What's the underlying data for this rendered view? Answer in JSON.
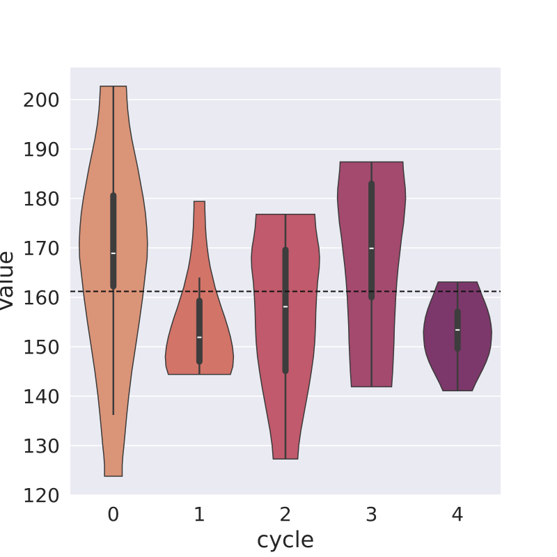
{
  "chart_data": {
    "type": "violin",
    "xlabel": "cycle",
    "ylabel": "Value",
    "categories": [
      "0",
      "1",
      "2",
      "3",
      "4"
    ],
    "ylim": [
      120,
      206.5
    ],
    "yticks": [
      120,
      130,
      140,
      150,
      160,
      170,
      180,
      190,
      200
    ],
    "reference_line": {
      "y": 161.2,
      "style": "dashed",
      "color": "#111111"
    },
    "grid": true,
    "legend": "none",
    "background": "#eaeaf2",
    "violins": [
      {
        "category": "0",
        "color": "#da9478",
        "min": 123.8,
        "max": 202.7,
        "q1": 162.2,
        "median": 168.9,
        "q3": 180.6,
        "whisker_low": 136.2,
        "whisker_high": 202.7,
        "density": [
          [
            123.8,
            0.26
          ],
          [
            126,
            0.26
          ],
          [
            128,
            0.28
          ],
          [
            130,
            0.31
          ],
          [
            133,
            0.35
          ],
          [
            136,
            0.39
          ],
          [
            140,
            0.45
          ],
          [
            145,
            0.54
          ],
          [
            150,
            0.65
          ],
          [
            155,
            0.76
          ],
          [
            160,
            0.86
          ],
          [
            165,
            0.94
          ],
          [
            168,
            0.99
          ],
          [
            171,
            1.0
          ],
          [
            174,
            0.98
          ],
          [
            177,
            0.94
          ],
          [
            180,
            0.88
          ],
          [
            183,
            0.8
          ],
          [
            186,
            0.72
          ],
          [
            189,
            0.63
          ],
          [
            192,
            0.54
          ],
          [
            195,
            0.47
          ],
          [
            198,
            0.42
          ],
          [
            200,
            0.4
          ],
          [
            202.7,
            0.38
          ]
        ]
      },
      {
        "category": "1",
        "color": "#d27468",
        "min": 144.4,
        "max": 179.4,
        "q1": 147.0,
        "median": 151.9,
        "q3": 159.3,
        "whisker_low": 144.4,
        "whisker_high": 164.0,
        "density": [
          [
            144.4,
            0.91
          ],
          [
            146,
            0.98
          ],
          [
            148,
            1.0
          ],
          [
            150,
            0.97
          ],
          [
            152,
            0.91
          ],
          [
            154,
            0.83
          ],
          [
            156,
            0.74
          ],
          [
            158,
            0.64
          ],
          [
            160,
            0.55
          ],
          [
            162,
            0.46
          ],
          [
            164,
            0.39
          ],
          [
            166,
            0.32
          ],
          [
            168,
            0.27
          ],
          [
            170,
            0.23
          ],
          [
            172,
            0.2
          ],
          [
            174,
            0.18
          ],
          [
            176,
            0.17
          ],
          [
            178,
            0.16
          ],
          [
            179.4,
            0.16
          ]
        ]
      },
      {
        "category": "2",
        "color": "#c05a6c",
        "min": 127.3,
        "max": 176.8,
        "q1": 145.1,
        "median": 158.1,
        "q3": 169.6,
        "whisker_low": 127.3,
        "whisker_high": 176.8,
        "density": [
          [
            127.3,
            0.36
          ],
          [
            130,
            0.39
          ],
          [
            133,
            0.45
          ],
          [
            136,
            0.53
          ],
          [
            139,
            0.61
          ],
          [
            142,
            0.69
          ],
          [
            145,
            0.76
          ],
          [
            148,
            0.82
          ],
          [
            151,
            0.86
          ],
          [
            154,
            0.88
          ],
          [
            157,
            0.89
          ],
          [
            160,
            0.91
          ],
          [
            163,
            0.94
          ],
          [
            166,
            0.99
          ],
          [
            168,
            1.0
          ],
          [
            170,
            0.98
          ],
          [
            172,
            0.93
          ],
          [
            174,
            0.89
          ],
          [
            176.8,
            0.86
          ]
        ]
      },
      {
        "category": "3",
        "color": "#a34a6e",
        "min": 141.9,
        "max": 187.4,
        "q1": 160.0,
        "median": 169.9,
        "q3": 183.0,
        "whisker_low": 141.9,
        "whisker_high": 187.4,
        "density": [
          [
            141.9,
            0.59
          ],
          [
            145,
            0.62
          ],
          [
            148,
            0.64
          ],
          [
            151,
            0.66
          ],
          [
            154,
            0.67
          ],
          [
            157,
            0.69
          ],
          [
            160,
            0.71
          ],
          [
            163,
            0.74
          ],
          [
            166,
            0.78
          ],
          [
            169,
            0.83
          ],
          [
            172,
            0.88
          ],
          [
            175,
            0.94
          ],
          [
            178,
            0.98
          ],
          [
            180,
            1.0
          ],
          [
            182,
            0.99
          ],
          [
            184,
            0.96
          ],
          [
            186,
            0.93
          ],
          [
            187.4,
            0.92
          ]
        ]
      },
      {
        "category": "4",
        "color": "#7c386a",
        "min": 141.1,
        "max": 163.1,
        "q1": 149.6,
        "median": 153.4,
        "q3": 157.1,
        "whisker_low": 141.1,
        "whisker_high": 163.1,
        "density": [
          [
            141.1,
            0.43
          ],
          [
            142.5,
            0.52
          ],
          [
            144,
            0.63
          ],
          [
            145.5,
            0.74
          ],
          [
            147,
            0.84
          ],
          [
            148.5,
            0.92
          ],
          [
            150,
            0.97
          ],
          [
            151.5,
            0.99
          ],
          [
            153,
            1.0
          ],
          [
            154.5,
            0.98
          ],
          [
            156,
            0.94
          ],
          [
            157.5,
            0.88
          ],
          [
            159,
            0.8
          ],
          [
            160.5,
            0.71
          ],
          [
            162,
            0.63
          ],
          [
            163.1,
            0.57
          ]
        ]
      }
    ]
  }
}
